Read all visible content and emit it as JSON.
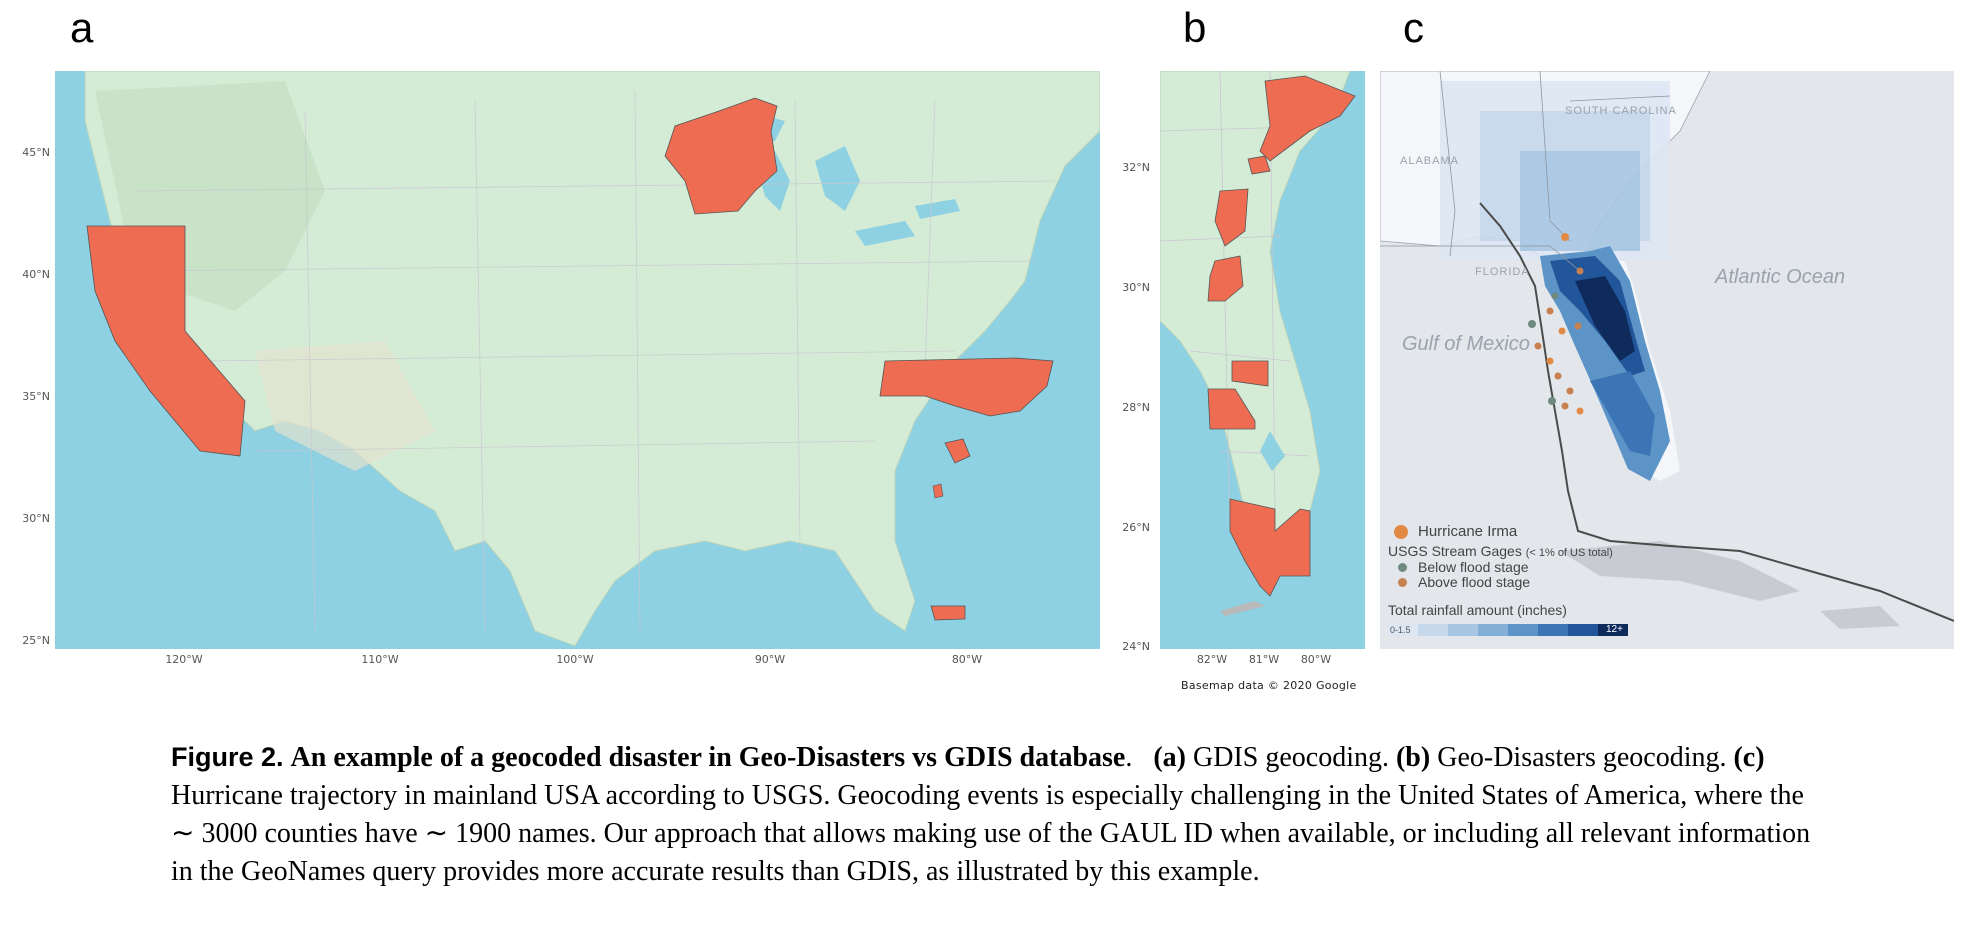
{
  "panels": {
    "a": {
      "letter": "a",
      "y_ticks": [
        "45°N",
        "40°N",
        "35°N",
        "30°N",
        "25°N"
      ],
      "x_ticks": [
        "120°W",
        "110°W",
        "100°W",
        "90°W",
        "80°W"
      ]
    },
    "b": {
      "letter": "b",
      "y_ticks": [
        "32°N",
        "30°N",
        "28°N",
        "26°N",
        "24°N"
      ],
      "x_ticks": [
        "82°W",
        "81°W",
        "80°W"
      ],
      "credit": "Basemap data © 2020 Google"
    },
    "c": {
      "letter": "c",
      "labels": {
        "atlantic": "Atlantic Ocean",
        "gulf": "Gulf of Mexico",
        "south_carolina": "SOUTH CAROLINA",
        "alabama": "ALABAMA",
        "florida": "FLORIDA"
      },
      "legend": {
        "hurricane": "Hurricane Irma",
        "gages_title": "USGS Stream Gages",
        "gages_note": "(< 1% of US total)",
        "below": "Below flood stage",
        "above": "Above flood stage",
        "rainfall_title": "Total rainfall amount (inches)",
        "rain_min": "0-1.5",
        "rain_max": "12+"
      }
    }
  },
  "colors": {
    "highlight": "#ee6c52",
    "ocean": "#8ed1e3",
    "land": "#d4ecd6",
    "rain_ramp": [
      "#dde7f3",
      "#c6d8ec",
      "#a7c6e3",
      "#84b0d8",
      "#5d94c8",
      "#3b75b6",
      "#22569a",
      "#163d78",
      "#0e2b5c"
    ],
    "hurricane_dot": "#e08a45",
    "gage_below": "#6f8a7e",
    "gage_above": "#c78150"
  },
  "caption": {
    "fig_label": "Figure 2.",
    "title": "An example of a geocoded disaster in Geo-Disasters vs GDIS database",
    "a_tag": "(a)",
    "a_text": " GDIS geocoding. ",
    "b_tag": "(b)",
    "b_text": " Geo-Disasters geocoding. ",
    "c_tag": "(c)",
    "c_text": " Hurricane trajectory in mainland USA according to USGS. Geocoding events is especially challenging in the United States of America, where the ∼ 3000 counties have ∼ 1900 names. Our approach that allows making use of the GAUL ID when available, or including all relevant information in the GeoNames query provides more accurate results than GDIS, as illustrated by this example."
  }
}
